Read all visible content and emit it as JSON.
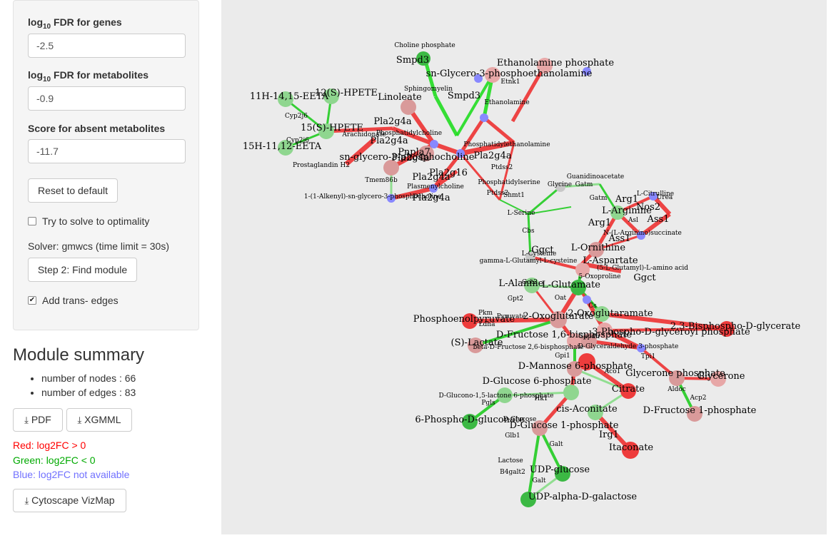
{
  "sidebar": {
    "fdr_genes": {
      "label_pre": "log",
      "label_sub": "10",
      "label_post": " FDR for genes",
      "value": "-2.5"
    },
    "fdr_metabolites": {
      "label_pre": "log",
      "label_sub": "10",
      "label_post": " FDR for metabolites",
      "value": "-0.9"
    },
    "absent_score": {
      "label": "Score for absent metabolites",
      "value": "-11.7"
    },
    "reset_label": "Reset to default",
    "optimality": {
      "label": "Try to solve to optimality",
      "checked": false
    },
    "solver_text": "Solver: gmwcs (time limit = 30s)",
    "find_label": "Step 2: Find module",
    "trans_edges": {
      "label": "Add trans- edges",
      "checked": true
    }
  },
  "summary": {
    "title": "Module summary",
    "items": [
      "number of nodes : 66",
      "number of edges : 83"
    ],
    "pdf_label": "PDF",
    "xgmml_label": "XGMML",
    "legend": {
      "red": "Red: log2FC > 0",
      "green": "Green: log2FC < 0",
      "blue": "Blue: log2FC not available"
    },
    "red_color": "#ff0000",
    "green_color": "#00aa00",
    "blue_color": "#7070ff",
    "vizmap_label": "Cytoscape VizMap"
  },
  "network": {
    "labels": [
      "Choline phosphate",
      "Smpd3",
      "sn-Glycero-3-phosphoethanolamine",
      "Ethanolamine phosphate",
      "Sphingomyelin",
      "Smpd3",
      "Etnk1",
      "11H-14,15-EETA",
      "12(S)-HPETE",
      "Linoleate",
      "Pla2g4a",
      "Ethanolamine",
      "15(S)-HPETE",
      "Cyp2j6",
      "Pla2g4a",
      "Arachidonate",
      "Phosphatidylcholine",
      "Pla2g4a",
      "Phosphatidylethanolamine",
      "15H-11,12-EETA",
      "Cyp2j6",
      "Prostaglandin H2",
      "sn-glycero-3-phosphocholine",
      "Pnpla7",
      "Pla2g4a",
      "Pla2g16",
      "Pla2g4a",
      "Ptdss2",
      "Plasmenylcholine",
      "Phosphatidylserine",
      "1-(1-Alkenyl)-sn-glycero-3-phosphocholine",
      "Tmem86b",
      "Pla2g4a",
      "Guanidinoacetate",
      "Glycine",
      "Gatm",
      "Shmt1",
      "Ptdss2",
      "L-Serine",
      "L-Citrulline",
      "Arg1",
      "Urea",
      "Nos2",
      "Gatm",
      "L-Arginine",
      "Asl",
      "Arg1",
      "Ass1",
      "N-(L-Arginino)succinate",
      "Cbs",
      "Ass1",
      "L-Ornithine",
      "Ggct",
      "L-Cysteine",
      "gamma-L-Glutamyl-L-cysteine",
      "L-Aspartate",
      "5-Oxoproline",
      "(5-L-Glutamyl)-L-amino acid",
      "Ggct",
      "L-Alanine",
      "L-Glutamate",
      "Got2",
      "Oat",
      "Cs",
      "Gpt2",
      "Pkm",
      "Pyruvate",
      "Phosphoenolpyruvate",
      "2-Oxoglutarate",
      "2-Oxoglutaramate",
      "2,3-Bisphospho-D-glycerate",
      "3-Phospho-D-glyceroyl phosphate",
      "Ldha",
      "(S)-Lactate",
      "D-Fructose 1,6-bisphosphate",
      "beta-D-Fructose 2,6-bisphosphate",
      "Gapdh",
      "D-Glyceraldehyde 3-phosphate",
      "Tpi1",
      "Gpi1",
      "D-Mannose 6-phosphate",
      "Glycerone phosphate",
      "Glycerone",
      "D-Glucose 6-phosphate",
      "Aco1",
      "Citrate",
      "Aldoc",
      "Acp2",
      "D-Glucono-1,5-lactone 6-phosphate",
      "Pgls",
      "Hk1",
      "cis-Aconitate",
      "D-Fructose 1-phosphate",
      "6-Phospho-D-gluconate",
      "D-Glucose",
      "D-Glucose 1-phosphate",
      "Irg1",
      "Glb1",
      "Itaconate",
      "Galt",
      "Lactose",
      "B4galt2",
      "UDP-glucose",
      "Galt",
      "UDP-alpha-D-galactose"
    ]
  }
}
